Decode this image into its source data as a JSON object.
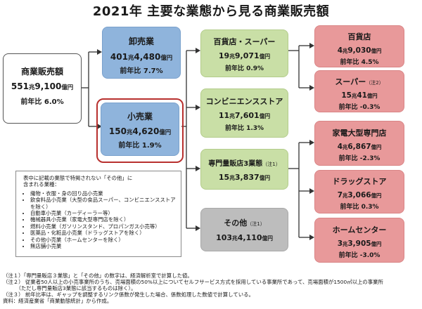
{
  "title": "2021年 主要な業態から見る商業販売額",
  "total": {
    "name": "商業販売額",
    "amount_main": "551",
    "unit1": "兆",
    "amount_sub": "9,100",
    "unit2": "億円",
    "yoy": "前年比 6.0%"
  },
  "wholesale": {
    "name": "卸売業",
    "amount_main": "401",
    "unit1": "兆",
    "amount_sub": "4,480",
    "unit2": "億円",
    "yoy": "前年比 7.7%"
  },
  "retail": {
    "name": "小売業",
    "amount_main": "150",
    "unit1": "兆",
    "amount_sub": "4,620",
    "unit2": "億円",
    "yoy": "前年比 1.9%"
  },
  "dept_super": {
    "name": "百貨店・スーパー",
    "amount_main": "19",
    "unit1": "兆",
    "amount_sub": "9,071",
    "unit2": "億円",
    "yoy": "前年比 0.9%"
  },
  "convenience": {
    "name": "コンビニエンスストア",
    "amount_main": "11",
    "unit1": "兆",
    "amount_sub": "7,601",
    "unit2": "億円",
    "yoy": "前年比 1.3%"
  },
  "specialty3": {
    "name": "専門量販店3業態",
    "note": "（注1）",
    "amount_main": "15",
    "unit1": "兆",
    "amount_sub": "3,837",
    "unit2": "億円"
  },
  "other": {
    "name": "その他",
    "note": "（注1）",
    "amount_main": "103",
    "unit1": "兆",
    "amount_sub": "4,110",
    "unit2": "億円"
  },
  "dept": {
    "name": "百貨店",
    "amount_main": "4",
    "unit1": "兆",
    "amount_sub": "9,030",
    "unit2": "億円",
    "yoy": "前年比 4.5%"
  },
  "super": {
    "name": "スーパー",
    "note": "（注2）",
    "amount_main": "15",
    "unit1": "兆",
    "amount_sub": "41",
    "unit2": "億円",
    "yoy": "前年比 -0.3%"
  },
  "electronics": {
    "name": "家電大型専門店",
    "amount_main": "4",
    "unit1": "兆",
    "amount_sub": "6,867",
    "unit2": "億円",
    "yoy": "前年比 -2.3%"
  },
  "drugstore": {
    "name": "ドラッグストア",
    "amount_main": "7",
    "unit1": "兆",
    "amount_sub": "3,066",
    "unit2": "億円",
    "yoy": "前年比 0.3%"
  },
  "homecenter": {
    "name": "ホームセンター",
    "amount_main": "3",
    "unit1": "兆",
    "amount_sub": "3,905",
    "unit2": "億円",
    "yoy": "前年比 -3.0%"
  },
  "note_box": {
    "heading1": "表中に記載の業態で特掲されない「その他」に",
    "heading2": "含まれる業種：",
    "items": [
      "織物・衣服・身の回り品小売業",
      "飲食料品小売業（大型の食品スーパー、コンビニエンスストア",
      "を除く）",
      "自動車小売業（カーディーラー等）",
      "機械器具小売業（家電大型専門店を除く）",
      "燃料小売業（ガソリンスタンド、プロパンガス小売等）",
      "医薬品・化粧品小売業（ドラッグストアを除く）",
      "その他小売業（ホームセンターを除く）",
      "無店舗小売業"
    ]
  },
  "footnotes": [
    "（注１）「専門量販店３業態」と「その他」の数字は、経済解析室で計算した値。",
    "（注２） 従業者50人以上の小売事業所のうち、売場面積の50%以上についてセルフサービス方式を採用している事業所であって、売場面積が1500㎡以上の事業所",
    "　　　（ただし専門量販店3業態に該当するものは除く）。",
    "（注３） 前年比率は、ギャップを調整するリンク係数が発生した場合、係数処理した数値で計算している。",
    "資料：経済産業省「商業動態統計」から作成。"
  ]
}
